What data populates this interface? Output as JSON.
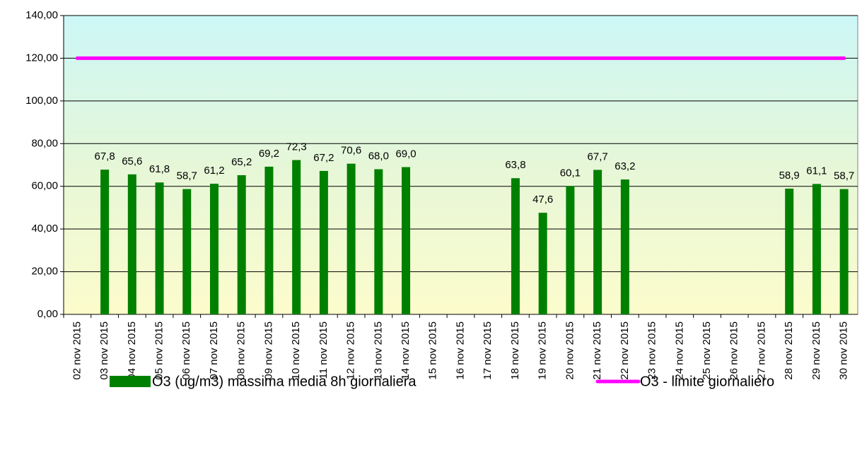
{
  "chart_data": {
    "type": "bar",
    "categories": [
      "02 nov 2015",
      "03 nov 2015",
      "04 nov 2015",
      "05 nov 2015",
      "06 nov 2015",
      "07 nov 2015",
      "08 nov 2015",
      "09 nov 2015",
      "10 nov 2015",
      "11 nov 2015",
      "12 nov 2015",
      "13 nov 2015",
      "14 nov 2015",
      "15 nov 2015",
      "16 nov 2015",
      "17 nov 2015",
      "18 nov 2015",
      "19 nov 2015",
      "20 nov 2015",
      "21 nov 2015",
      "22 nov 2015",
      "23 nov 2015",
      "24 nov 2015",
      "25 nov 2015",
      "26 nov 2015",
      "27 nov 2015",
      "28 nov 2015",
      "29 nov 2015",
      "30 nov 2015"
    ],
    "series": [
      {
        "name": "O3 (ug/m3) massima media 8h giornaliera",
        "type": "bar",
        "color": "#008000",
        "values": [
          null,
          67.8,
          65.6,
          61.8,
          58.7,
          61.2,
          65.2,
          69.2,
          72.3,
          67.2,
          70.6,
          68.0,
          69.0,
          null,
          null,
          null,
          63.8,
          47.6,
          60.1,
          67.7,
          63.2,
          null,
          null,
          null,
          null,
          null,
          58.9,
          61.1,
          58.7
        ],
        "value_labels": [
          null,
          "67,8",
          "65,6",
          "61,8",
          "58,7",
          "61,2",
          "65,2",
          "69,2",
          "72,3",
          "67,2",
          "70,6",
          "68,0",
          "69,0",
          null,
          null,
          null,
          "63,8",
          "47,6",
          "60,1",
          "67,7",
          "63,2",
          null,
          null,
          null,
          null,
          null,
          "58,9",
          "61,1",
          "58,7"
        ]
      },
      {
        "name": "O3 - limite giornaliero",
        "type": "line",
        "color": "#ff00ff",
        "values": [
          120,
          120,
          120,
          120,
          120,
          120,
          120,
          120,
          120,
          120,
          120,
          120,
          120,
          120,
          120,
          120,
          120,
          120,
          120,
          120,
          120,
          120,
          120,
          120,
          120,
          120,
          120,
          120,
          120
        ]
      }
    ],
    "ylim": [
      0,
      140
    ],
    "yticks": [
      {
        "value": 0,
        "label": "0,00"
      },
      {
        "value": 20,
        "label": "20,00"
      },
      {
        "value": 40,
        "label": "40,00"
      },
      {
        "value": 60,
        "label": "60,00"
      },
      {
        "value": 80,
        "label": "80,00"
      },
      {
        "value": 100,
        "label": "100,00"
      },
      {
        "value": 120,
        "label": "120,00"
      },
      {
        "value": 140,
        "label": "140,00"
      }
    ],
    "grid": true,
    "legend": "bottom"
  }
}
